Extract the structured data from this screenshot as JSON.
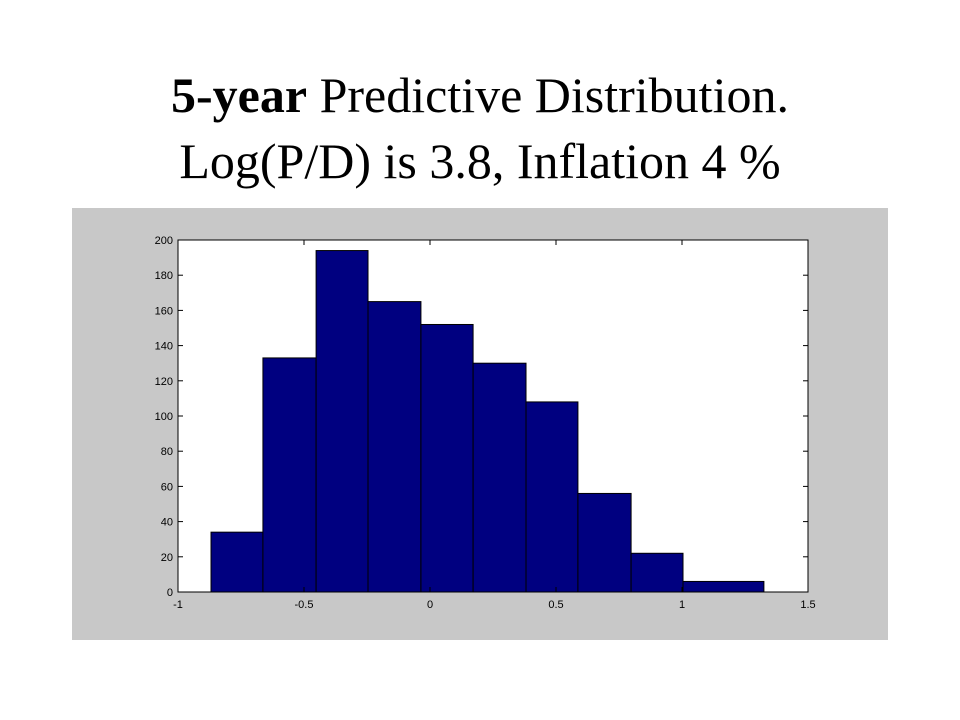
{
  "chart_data": {
    "type": "histogram",
    "title_bold": "5-year",
    "title": "Predictive Distribution.",
    "subtitle": "Log(P/D) is 3.8, Inflation 4 %",
    "bins": [
      -0.869,
      -0.663,
      -0.452,
      -0.246,
      -0.036,
      0.171,
      0.381,
      0.587,
      0.798,
      1.004,
      1.325
    ],
    "values": [
      34,
      133,
      194,
      165,
      152,
      130,
      108,
      56,
      22,
      6
    ],
    "color": "#000080",
    "xlim": [
      -1,
      1.5
    ],
    "xticks": [
      -1,
      -0.5,
      0,
      0.5,
      1,
      1.5
    ],
    "ylim": [
      0,
      200
    ],
    "yticks": [
      0,
      20,
      40,
      60,
      80,
      100,
      120,
      140,
      160,
      180,
      200
    ]
  }
}
